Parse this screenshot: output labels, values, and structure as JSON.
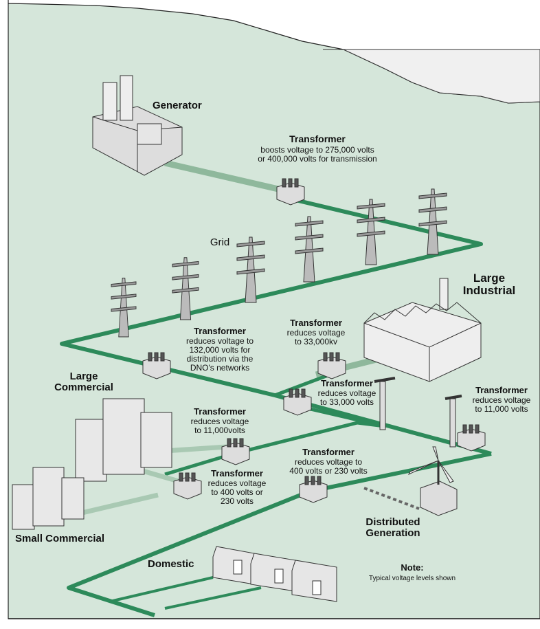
{
  "labels": [
    {
      "title": [
        "Generator"
      ]
    },
    {
      "title": [
        "Transformer"
      ],
      "text": [
        "boosts voltage to 275,000 volts",
        "or 400,000 volts for transmission"
      ]
    },
    {
      "text": [
        "Grid"
      ]
    },
    {
      "title": [
        "Large",
        "Industrial"
      ]
    },
    {
      "title": [
        "Transformer"
      ],
      "text": [
        "reduces voltage to",
        "132,000 volts for",
        "distribution via the",
        "DNO's networks"
      ]
    },
    {
      "title": [
        "Transformer"
      ],
      "text": [
        "reduces voltage",
        "to 33,000kv"
      ]
    },
    {
      "title": [
        "Large",
        "Commercial"
      ]
    },
    {
      "title": [
        "Transformer"
      ],
      "text": [
        "reduces voltage",
        "to 33,000 volts"
      ]
    },
    {
      "title": [
        "Transformer"
      ],
      "text": [
        "reduces voltage",
        "to 11,000 volts"
      ]
    },
    {
      "title": [
        "Transformer"
      ],
      "text": [
        "reduces voltage",
        "to 11,000volts"
      ]
    },
    {
      "title": [
        "Transformer"
      ],
      "text": [
        "reduces voltage to",
        "400 volts or 230 volts"
      ]
    },
    {
      "title": [
        "Transformer"
      ],
      "text": [
        "reduces voltage",
        "to 400 volts or",
        "230 volts"
      ]
    },
    {
      "title": [
        "Distributed",
        "Generation"
      ]
    },
    {
      "title": [
        "Small Commercial"
      ]
    },
    {
      "title": [
        "Domestic"
      ]
    },
    {
      "title": [
        "Note:"
      ],
      "text": [
        "Typical voltage levels shown"
      ]
    }
  ]
}
